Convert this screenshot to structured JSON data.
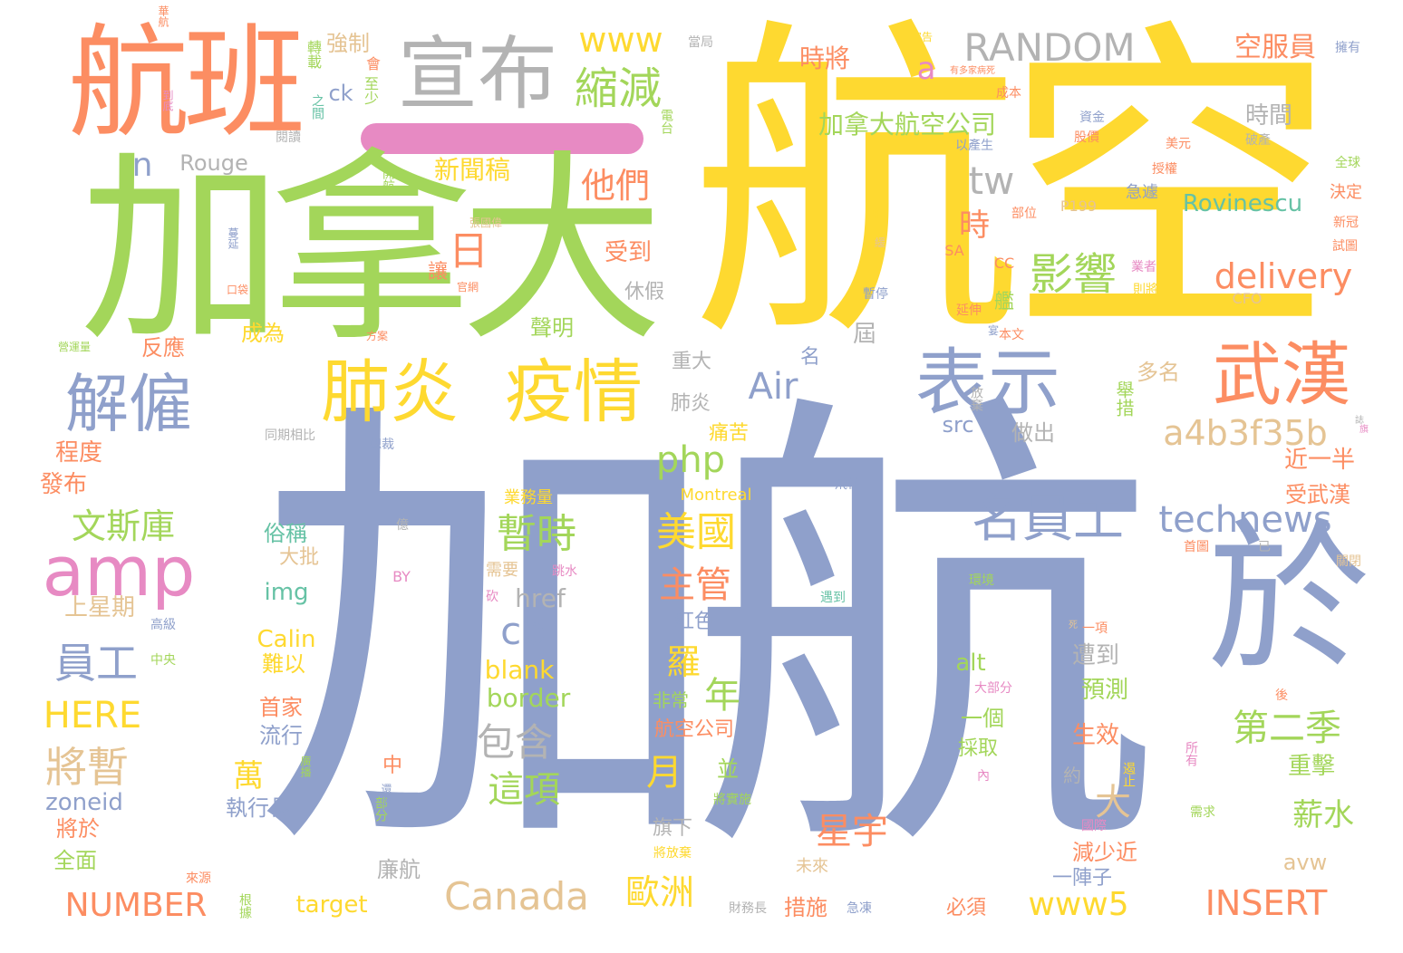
{
  "palette": {
    "blue": "#8fa0cb",
    "yellow": "#fed930",
    "green": "#a3d65a",
    "orange": "#fc8d62",
    "pink": "#e78ac3",
    "tan": "#e5c494",
    "gray": "#b3b3b3",
    "teal": "#66c2a5"
  },
  "bar_color": "#e78ac3",
  "words": [
    {
      "t": "加航",
      "c": "blue"
    },
    {
      "t": "航空",
      "c": "yellow"
    },
    {
      "t": "加拿大",
      "c": "green"
    },
    {
      "t": "航班",
      "c": "orange"
    },
    {
      "t": "宣布",
      "c": "gray"
    },
    {
      "t": "於",
      "c": "blue"
    },
    {
      "t": "表示",
      "c": "blue"
    },
    {
      "t": "武漢",
      "c": "orange"
    },
    {
      "t": "肺炎",
      "c": "yellow"
    },
    {
      "t": "疫情",
      "c": "yellow"
    },
    {
      "t": "解僱",
      "c": "blue"
    },
    {
      "t": "amp",
      "c": "pink"
    },
    {
      "t": "RANDOM",
      "c": "gray"
    },
    {
      "t": "縮減",
      "c": "green"
    },
    {
      "t": "www",
      "c": "yellow"
    },
    {
      "t": "名員工",
      "c": "blue"
    },
    {
      "t": "technews",
      "c": "blue"
    },
    {
      "t": "Canada",
      "c": "tan"
    },
    {
      "t": "a4b3f35b",
      "c": "tan"
    },
    {
      "t": "delivery",
      "c": "orange"
    },
    {
      "t": "影響",
      "c": "green"
    },
    {
      "t": "加拿大航空公司",
      "c": "green"
    },
    {
      "t": "他們",
      "c": "orange"
    },
    {
      "t": "新聞稿",
      "c": "yellow"
    },
    {
      "t": "時將",
      "c": "orange"
    },
    {
      "t": "空服員",
      "c": "orange"
    },
    {
      "t": "時間",
      "c": "gray"
    },
    {
      "t": "Rovinescu",
      "c": "teal"
    },
    {
      "t": "tw",
      "c": "gray"
    },
    {
      "t": "時",
      "c": "orange"
    },
    {
      "t": "日",
      "c": "orange"
    },
    {
      "t": "Air",
      "c": "blue"
    },
    {
      "t": "php",
      "c": "green"
    },
    {
      "t": "暫時",
      "c": "green"
    },
    {
      "t": "美國",
      "c": "yellow"
    },
    {
      "t": "主管",
      "c": "orange"
    },
    {
      "t": "cb",
      "c": "blue"
    },
    {
      "t": "文斯庫",
      "c": "green"
    },
    {
      "t": "員工",
      "c": "blue"
    },
    {
      "t": "HERE",
      "c": "yellow"
    },
    {
      "t": "將暫",
      "c": "tan"
    },
    {
      "t": "NUMBER",
      "c": "orange"
    },
    {
      "t": "INSERT",
      "c": "orange"
    },
    {
      "t": "www5",
      "c": "yellow"
    },
    {
      "t": "歐洲",
      "c": "yellow"
    },
    {
      "t": "包含",
      "c": "gray"
    },
    {
      "t": "這項",
      "c": "green"
    },
    {
      "t": "第二季",
      "c": "green"
    },
    {
      "t": "薪水",
      "c": "green"
    },
    {
      "t": "星宇",
      "c": "orange"
    },
    {
      "t": "年",
      "c": "green"
    },
    {
      "t": "月",
      "c": "yellow"
    },
    {
      "t": "大",
      "c": "tan"
    },
    {
      "t": "羅",
      "c": "yellow"
    },
    {
      "t": "萬",
      "c": "yellow"
    },
    {
      "t": "a",
      "c": "pink"
    },
    {
      "t": "n",
      "c": "blue"
    },
    {
      "t": "Rouge",
      "c": "gray"
    },
    {
      "t": "ck",
      "c": "blue"
    },
    {
      "t": "zoneid",
      "c": "blue"
    },
    {
      "t": "img",
      "c": "teal"
    },
    {
      "t": "Calin",
      "c": "yellow"
    },
    {
      "t": "href",
      "c": "gray"
    },
    {
      "t": "blank",
      "c": "yellow"
    },
    {
      "t": "border",
      "c": "green"
    },
    {
      "t": "target",
      "c": "yellow"
    },
    {
      "t": "alt",
      "c": "green"
    },
    {
      "t": "src",
      "c": "blue"
    },
    {
      "t": "avw",
      "c": "tan"
    },
    {
      "t": "Montreal",
      "c": "yellow"
    },
    {
      "t": "P199",
      "c": "tan"
    },
    {
      "t": "BY",
      "c": "pink"
    },
    {
      "t": "SA",
      "c": "orange"
    },
    {
      "t": "CC",
      "c": "orange"
    },
    {
      "t": "CFO",
      "c": "tan"
    },
    {
      "t": "強制",
      "c": "tan"
    },
    {
      "t": "轉載",
      "c": "green"
    },
    {
      "t": "至少",
      "c": "green"
    },
    {
      "t": "之間",
      "c": "teal"
    },
    {
      "t": "閱讀",
      "c": "gray"
    },
    {
      "t": "開航",
      "c": "green"
    },
    {
      "t": "張國偉",
      "c": "tan"
    },
    {
      "t": "華航",
      "c": "orange"
    },
    {
      "t": "到底",
      "c": "pink"
    },
    {
      "t": "當局",
      "c": "gray"
    },
    {
      "t": "電台",
      "c": "green"
    },
    {
      "t": "成本",
      "c": "orange"
    },
    {
      "t": "資金",
      "c": "blue"
    },
    {
      "t": "股價",
      "c": "orange"
    },
    {
      "t": "美元",
      "c": "orange"
    },
    {
      "t": "破產",
      "c": "gray"
    },
    {
      "t": "以產生",
      "c": "blue"
    },
    {
      "t": "擁有",
      "c": "blue"
    },
    {
      "t": "授權",
      "c": "orange"
    },
    {
      "t": "急遽",
      "c": "blue"
    },
    {
      "t": "決定",
      "c": "orange"
    },
    {
      "t": "全球",
      "c": "green"
    },
    {
      "t": "新冠",
      "c": "orange"
    },
    {
      "t": "試圖",
      "c": "orange"
    },
    {
      "t": "部位",
      "c": "orange"
    },
    {
      "t": "業者",
      "c": "pink"
    },
    {
      "t": "則將",
      "c": "yellow"
    },
    {
      "t": "暫停",
      "c": "blue"
    },
    {
      "t": "延伸",
      "c": "orange"
    },
    {
      "t": "本文",
      "c": "orange"
    },
    {
      "t": "受到",
      "c": "orange"
    },
    {
      "t": "休假",
      "c": "gray"
    },
    {
      "t": "聲明",
      "c": "green"
    },
    {
      "t": "成為",
      "c": "yellow"
    },
    {
      "t": "反應",
      "c": "orange"
    },
    {
      "t": "屆",
      "c": "gray"
    },
    {
      "t": "重大",
      "c": "gray"
    },
    {
      "t": "肺炎",
      "c": "gray"
    },
    {
      "t": "痛苦",
      "c": "yellow"
    },
    {
      "t": "多名",
      "c": "tan"
    },
    {
      "t": "做出",
      "c": "gray"
    },
    {
      "t": "近一半",
      "c": "orange"
    },
    {
      "t": "受武漢",
      "c": "orange"
    },
    {
      "t": "程度",
      "c": "orange"
    },
    {
      "t": "發布",
      "c": "orange"
    },
    {
      "t": "俗稱",
      "c": "teal"
    },
    {
      "t": "大批",
      "c": "tan"
    },
    {
      "t": "上星期",
      "c": "tan"
    },
    {
      "t": "高級",
      "c": "blue"
    },
    {
      "t": "中央",
      "c": "green"
    },
    {
      "t": "難以",
      "c": "yellow"
    },
    {
      "t": "首家",
      "c": "orange"
    },
    {
      "t": "流行",
      "c": "blue"
    },
    {
      "t": "執行長",
      "c": "blue"
    },
    {
      "t": "將於",
      "c": "orange"
    },
    {
      "t": "全面",
      "c": "green"
    },
    {
      "t": "來源",
      "c": "orange"
    },
    {
      "t": "根據",
      "c": "green"
    },
    {
      "t": "財務長",
      "c": "gray"
    },
    {
      "t": "廉航",
      "c": "gray"
    },
    {
      "t": "旗下",
      "c": "gray"
    },
    {
      "t": "措施",
      "c": "orange"
    },
    {
      "t": "未來",
      "c": "tan"
    },
    {
      "t": "減少近",
      "c": "orange"
    },
    {
      "t": "一陣子",
      "c": "blue"
    },
    {
      "t": "必須",
      "c": "orange"
    },
    {
      "t": "生效",
      "c": "orange"
    },
    {
      "t": "遭到",
      "c": "gray"
    },
    {
      "t": "預測",
      "c": "green"
    },
    {
      "t": "一個",
      "c": "green"
    },
    {
      "t": "採取",
      "c": "green"
    },
    {
      "t": "重擊",
      "c": "green"
    },
    {
      "t": "約",
      "c": "gray"
    },
    {
      "t": "業務量",
      "c": "yellow"
    },
    {
      "t": "需要",
      "c": "tan"
    },
    {
      "t": "紅色",
      "c": "blue"
    },
    {
      "t": "非常",
      "c": "green"
    },
    {
      "t": "航空公司",
      "c": "orange"
    },
    {
      "t": "並",
      "c": "green"
    },
    {
      "t": "中",
      "c": "orange"
    },
    {
      "t": "將實施",
      "c": "green"
    },
    {
      "t": "將放棄",
      "c": "yellow"
    },
    {
      "t": "跳水",
      "c": "pink"
    },
    {
      "t": "砍",
      "c": "pink"
    },
    {
      "t": "遇到",
      "c": "teal"
    },
    {
      "t": "飛往",
      "c": "blue"
    },
    {
      "t": "同期相比",
      "c": "gray"
    },
    {
      "t": "總裁",
      "c": "blue"
    },
    {
      "t": "放棄",
      "c": "gray"
    },
    {
      "t": "舉措",
      "c": "green"
    },
    {
      "t": "環境",
      "c": "green"
    },
    {
      "t": "首圖",
      "c": "orange"
    },
    {
      "t": "關閉",
      "c": "tan"
    },
    {
      "t": "一項",
      "c": "orange"
    },
    {
      "t": "大部分",
      "c": "pink"
    },
    {
      "t": "後",
      "c": "orange"
    },
    {
      "t": "所有",
      "c": "pink"
    },
    {
      "t": "需求",
      "c": "green"
    },
    {
      "t": "國際",
      "c": "pink"
    },
    {
      "t": "遏止",
      "c": "yellow"
    },
    {
      "t": "內",
      "c": "pink"
    },
    {
      "t": "部分",
      "c": "green"
    },
    {
      "t": "廣播",
      "c": "green"
    },
    {
      "t": "億",
      "c": "gray"
    },
    {
      "t": "名",
      "c": "blue"
    },
    {
      "t": "讓",
      "c": "orange"
    },
    {
      "t": "艦",
      "c": "green"
    },
    {
      "t": "宣告",
      "c": "yellow"
    },
    {
      "t": "營運量",
      "c": "green"
    },
    {
      "t": "方案",
      "c": "orange"
    },
    {
      "t": "口袋",
      "c": "orange"
    },
    {
      "t": "蔓延",
      "c": "blue"
    },
    {
      "t": "將",
      "c": "yellow"
    },
    {
      "t": "緩",
      "c": "tan"
    },
    {
      "t": "官網",
      "c": "orange"
    },
    {
      "t": "會",
      "c": "orange"
    },
    {
      "t": "有多家病死",
      "c": "orange"
    },
    {
      "t": "急凍",
      "c": "blue"
    },
    {
      "t": "已",
      "c": "gray"
    },
    {
      "t": "旗",
      "c": "pink"
    },
    {
      "t": "宴",
      "c": "blue"
    },
    {
      "t": "死",
      "c": "tan"
    },
    {
      "t": "誌",
      "c": "gray"
    },
    {
      "t": "還原",
      "c": "blue"
    }
  ]
}
